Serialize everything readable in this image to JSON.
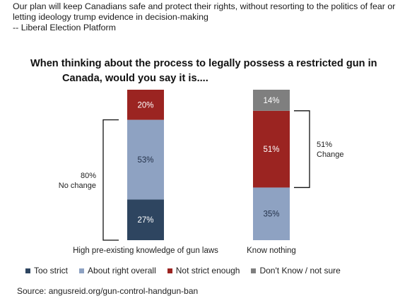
{
  "quote": {
    "line1": "Our plan will keep Canadians safe and protect their rights, without resorting to the politics of fear or",
    "line2": "letting ideology trump evidence in decision-making",
    "line3": "-- Liberal Election Platform"
  },
  "chart_data": {
    "type": "bar",
    "stacked": true,
    "title_line1": "When thinking about the process to legally possess a restricted gun in",
    "title_line2": "Canada, would you say it is....",
    "categories": [
      "High pre-existing knowledge of gun laws",
      "Know nothing"
    ],
    "series": [
      {
        "name": "Too strict",
        "color": "#2e4560",
        "values": [
          27,
          0
        ]
      },
      {
        "name": "About right overall",
        "color": "#8ea2c2",
        "values": [
          53,
          35
        ]
      },
      {
        "name": "Not strict enough",
        "color": "#9b2421",
        "values": [
          20,
          51
        ]
      },
      {
        "name": "Don't Know / not sure",
        "color": "#7f7f7f",
        "values": [
          0,
          14
        ]
      }
    ],
    "annotations": [
      {
        "category": "High pre-existing knowledge of gun laws",
        "line1": "80%",
        "line2": "No change",
        "side": "left"
      },
      {
        "category": "Know nothing",
        "line1": "51%",
        "line2": "Change",
        "side": "right"
      }
    ],
    "ylim": [
      0,
      100
    ],
    "legend_position": "bottom"
  },
  "source": "Source:  angusreid.org/gun-control-handgun-ban"
}
